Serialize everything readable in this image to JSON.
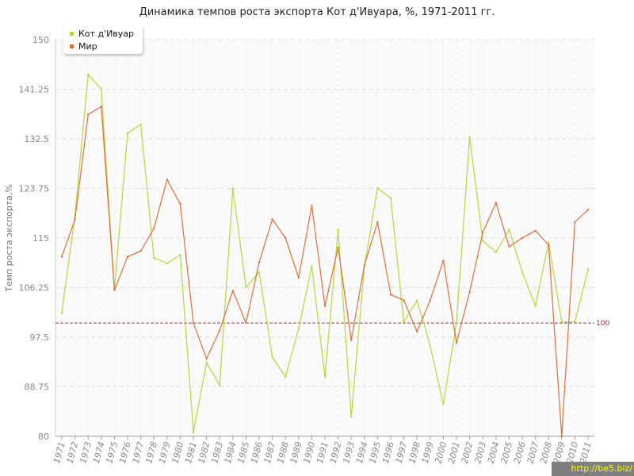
{
  "chart_data": {
    "type": "line",
    "title": "Динамика темпов роста экспорта Кот д'Ивуара, %, 1971-2011 гг.",
    "xlabel": "",
    "ylabel": "Темп роста экспорта,%",
    "ylim": [
      80,
      150
    ],
    "yticks": [
      "80",
      "88.75",
      "97.5",
      "106.25",
      "115",
      "123.75",
      "132.5",
      "141.25",
      "150"
    ],
    "x": [
      "1971",
      "1972",
      "1973",
      "1974",
      "1975",
      "1976",
      "1977",
      "1978",
      "1979",
      "1980",
      "1981",
      "1982",
      "1983",
      "1984",
      "1985",
      "1986",
      "1987",
      "1988",
      "1989",
      "1990",
      "1991",
      "1992",
      "1993",
      "1994",
      "1995",
      "1996",
      "1997",
      "1998",
      "1999",
      "2000",
      "2001",
      "2002",
      "2003",
      "2004",
      "2005",
      "2006",
      "2007",
      "2008",
      "2009",
      "2010",
      "2011"
    ],
    "series": [
      {
        "name": "Кот д'Ивуар",
        "color": "#b5d93a",
        "values": [
          101.8,
          119.0,
          143.8,
          141.3,
          106.0,
          133.5,
          135.0,
          111.5,
          110.5,
          112.0,
          80.7,
          93.0,
          89.0,
          123.7,
          106.3,
          109.0,
          94.0,
          90.5,
          99.0,
          110.0,
          90.5,
          116.5,
          83.5,
          110.0,
          123.8,
          122.0,
          100.2,
          104.0,
          96.0,
          85.7,
          100.0,
          132.8,
          114.5,
          112.5,
          116.5,
          109.0,
          103.0,
          114.2,
          100.2,
          100.2,
          109.5
        ]
      },
      {
        "name": "Мир",
        "color": "#e0703c",
        "values": [
          111.7,
          118.3,
          136.8,
          138.2,
          105.8,
          111.7,
          112.7,
          116.7,
          125.3,
          121.0,
          100.0,
          93.7,
          98.7,
          105.7,
          100.0,
          110.7,
          118.3,
          115.0,
          108.0,
          120.7,
          103.0,
          113.3,
          97.0,
          110.2,
          117.8,
          105.0,
          104.0,
          98.5,
          104.0,
          111.0,
          96.5,
          105.5,
          116.0,
          121.2,
          113.5,
          115.0,
          116.3,
          113.8,
          80.0,
          117.8,
          120.0
        ]
      }
    ],
    "reference_line": {
      "value": 100,
      "label": "100",
      "color": "#a0303e"
    },
    "grid": true,
    "legend_position": "top-left"
  },
  "watermark": "http://be5.biz/"
}
